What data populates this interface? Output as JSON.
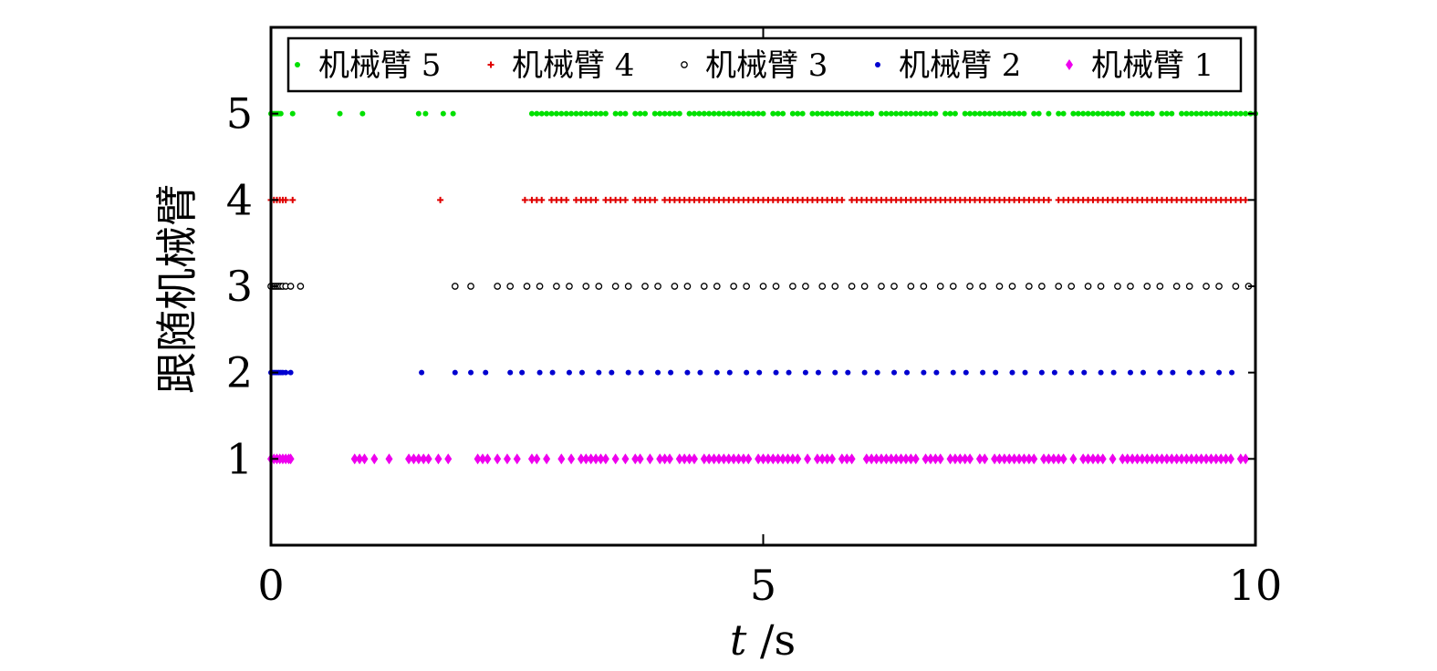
{
  "chart_data": {
    "type": "scatter",
    "xlabel_italic": "t",
    "xlabel_unit": " /s",
    "ylabel": "跟随机械臂",
    "xlim": [
      0,
      10
    ],
    "ylim": [
      0,
      6
    ],
    "x_ticks": [
      "0",
      "5",
      "10"
    ],
    "y_ticks": [
      "1",
      "2",
      "3",
      "4",
      "5"
    ],
    "grid": false,
    "legend_position": "top",
    "series": [
      {
        "name": "机械臂 5",
        "y": 5,
        "marker": "dot",
        "color": "#00e000",
        "x": [
          0.0,
          0.02,
          0.04,
          0.06,
          0.08,
          0.1,
          0.22,
          0.7,
          0.93,
          1.5,
          1.57,
          1.75,
          1.85,
          2.65,
          2.7,
          2.75,
          2.8,
          2.85,
          2.9,
          2.95,
          3.0,
          3.05,
          3.1,
          3.15,
          3.2,
          3.25,
          3.3,
          3.35,
          3.4,
          3.5,
          3.55,
          3.6,
          3.7,
          3.75,
          3.8,
          3.9,
          3.95,
          4.0,
          4.05,
          4.1,
          4.15,
          4.25,
          4.3,
          4.35,
          4.4,
          4.45,
          4.5,
          4.55,
          4.6,
          4.65,
          4.7,
          4.75,
          4.8,
          4.85,
          4.9,
          4.95,
          5.0,
          5.1,
          5.15,
          5.2,
          5.3,
          5.35,
          5.4,
          5.5,
          5.55,
          5.6,
          5.65,
          5.7,
          5.75,
          5.8,
          5.85,
          5.9,
          5.95,
          6.0,
          6.05,
          6.1,
          6.2,
          6.25,
          6.3,
          6.35,
          6.4,
          6.45,
          6.5,
          6.55,
          6.6,
          6.65,
          6.7,
          6.75,
          6.85,
          6.9,
          6.95,
          7.05,
          7.1,
          7.15,
          7.2,
          7.25,
          7.3,
          7.35,
          7.4,
          7.45,
          7.5,
          7.55,
          7.6,
          7.65,
          7.75,
          7.8,
          7.9,
          8.0,
          8.05,
          8.15,
          8.2,
          8.25,
          8.3,
          8.35,
          8.4,
          8.45,
          8.5,
          8.55,
          8.6,
          8.65,
          8.75,
          8.8,
          8.85,
          8.9,
          8.95,
          9.05,
          9.1,
          9.15,
          9.25,
          9.3,
          9.35,
          9.4,
          9.45,
          9.5,
          9.55,
          9.6,
          9.65,
          9.7,
          9.75,
          9.8,
          9.85,
          9.9,
          9.95,
          10.0
        ]
      },
      {
        "name": "机械臂 4",
        "y": 4,
        "marker": "plus",
        "color": "#e00000",
        "x": [
          0.0,
          0.03,
          0.06,
          0.09,
          0.12,
          0.15,
          0.22,
          1.72,
          2.58,
          2.65,
          2.7,
          2.75,
          2.85,
          2.9,
          2.95,
          3.0,
          3.1,
          3.15,
          3.2,
          3.25,
          3.3,
          3.4,
          3.45,
          3.5,
          3.55,
          3.6,
          3.7,
          3.75,
          3.8,
          3.85,
          3.9,
          4.0,
          4.05,
          4.1,
          4.15,
          4.2,
          4.25,
          4.3,
          4.35,
          4.4,
          4.45,
          4.5,
          4.55,
          4.6,
          4.65,
          4.7,
          4.75,
          4.8,
          4.85,
          4.9,
          4.95,
          5.0,
          5.05,
          5.1,
          5.15,
          5.2,
          5.25,
          5.3,
          5.35,
          5.4,
          5.45,
          5.5,
          5.55,
          5.6,
          5.65,
          5.7,
          5.75,
          5.8,
          5.9,
          5.95,
          6.0,
          6.05,
          6.1,
          6.15,
          6.2,
          6.25,
          6.3,
          6.35,
          6.4,
          6.45,
          6.5,
          6.55,
          6.6,
          6.65,
          6.7,
          6.75,
          6.8,
          6.85,
          6.9,
          6.95,
          7.0,
          7.05,
          7.1,
          7.15,
          7.2,
          7.25,
          7.3,
          7.35,
          7.4,
          7.45,
          7.5,
          7.55,
          7.6,
          7.65,
          7.7,
          7.75,
          7.8,
          7.85,
          7.9,
          8.0,
          8.05,
          8.1,
          8.15,
          8.2,
          8.25,
          8.3,
          8.35,
          8.4,
          8.45,
          8.5,
          8.55,
          8.6,
          8.65,
          8.7,
          8.75,
          8.8,
          8.85,
          8.9,
          8.95,
          9.0,
          9.05,
          9.1,
          9.15,
          9.2,
          9.25,
          9.3,
          9.35,
          9.4,
          9.45,
          9.5,
          9.55,
          9.6,
          9.65,
          9.7,
          9.75,
          9.8,
          9.85,
          9.9
        ]
      },
      {
        "name": "机械臂 3",
        "y": 3,
        "marker": "circle",
        "color": "#000000",
        "x": [
          0.0,
          0.02,
          0.04,
          0.06,
          0.08,
          0.1,
          0.12,
          0.15,
          0.2,
          0.3,
          1.87,
          2.03,
          2.3,
          2.43,
          2.6,
          2.73,
          2.9,
          3.03,
          3.2,
          3.33,
          3.5,
          3.63,
          3.8,
          3.93,
          4.1,
          4.23,
          4.4,
          4.53,
          4.7,
          4.83,
          5.0,
          5.13,
          5.3,
          5.43,
          5.6,
          5.73,
          5.9,
          6.03,
          6.2,
          6.33,
          6.5,
          6.63,
          6.8,
          6.93,
          7.1,
          7.23,
          7.4,
          7.53,
          7.7,
          7.83,
          8.0,
          8.13,
          8.3,
          8.43,
          8.6,
          8.73,
          8.9,
          9.03,
          9.2,
          9.33,
          9.5,
          9.63,
          9.8,
          9.93
        ]
      },
      {
        "name": "机械臂 2",
        "y": 2,
        "marker": "dot",
        "color": "#0000d0",
        "x": [
          0.0,
          0.02,
          0.04,
          0.06,
          0.08,
          0.1,
          0.12,
          0.15,
          0.2,
          1.53,
          1.87,
          2.03,
          2.18,
          2.43,
          2.55,
          2.73,
          2.86,
          3.03,
          3.16,
          3.33,
          3.46,
          3.63,
          3.76,
          3.93,
          4.06,
          4.23,
          4.36,
          4.53,
          4.66,
          4.83,
          4.96,
          5.13,
          5.26,
          5.43,
          5.56,
          5.73,
          5.86,
          6.03,
          6.16,
          6.33,
          6.46,
          6.63,
          6.76,
          6.93,
          7.06,
          7.23,
          7.36,
          7.53,
          7.66,
          7.83,
          7.96,
          8.13,
          8.26,
          8.43,
          8.56,
          8.73,
          8.86,
          9.03,
          9.16,
          9.33,
          9.46,
          9.63,
          9.76
        ]
      },
      {
        "name": "机械臂 1",
        "y": 1,
        "marker": "diamond",
        "color": "#ee00ee",
        "x": [
          0.0,
          0.03,
          0.06,
          0.09,
          0.12,
          0.15,
          0.18,
          0.2,
          0.85,
          0.9,
          0.95,
          1.05,
          1.2,
          1.4,
          1.45,
          1.5,
          1.55,
          1.6,
          1.7,
          1.8,
          2.1,
          2.15,
          2.2,
          2.3,
          2.4,
          2.5,
          2.65,
          2.7,
          2.8,
          2.95,
          3.05,
          3.15,
          3.2,
          3.25,
          3.3,
          3.35,
          3.4,
          3.5,
          3.6,
          3.7,
          3.75,
          3.85,
          3.95,
          4.0,
          4.05,
          4.15,
          4.2,
          4.25,
          4.3,
          4.4,
          4.45,
          4.5,
          4.55,
          4.6,
          4.65,
          4.7,
          4.75,
          4.8,
          4.85,
          4.95,
          5.0,
          5.05,
          5.1,
          5.15,
          5.2,
          5.25,
          5.3,
          5.35,
          5.45,
          5.55,
          5.6,
          5.65,
          5.7,
          5.8,
          5.85,
          5.9,
          6.05,
          6.1,
          6.15,
          6.2,
          6.25,
          6.3,
          6.35,
          6.4,
          6.45,
          6.5,
          6.55,
          6.65,
          6.7,
          6.75,
          6.8,
          6.9,
          6.95,
          7.0,
          7.05,
          7.1,
          7.2,
          7.25,
          7.35,
          7.4,
          7.45,
          7.5,
          7.55,
          7.6,
          7.65,
          7.7,
          7.75,
          7.85,
          7.9,
          7.95,
          8.0,
          8.05,
          8.15,
          8.25,
          8.3,
          8.35,
          8.4,
          8.45,
          8.55,
          8.65,
          8.7,
          8.75,
          8.8,
          8.85,
          8.9,
          8.95,
          9.0,
          9.05,
          9.1,
          9.15,
          9.2,
          9.25,
          9.3,
          9.35,
          9.4,
          9.45,
          9.5,
          9.55,
          9.6,
          9.65,
          9.7,
          9.75,
          9.85,
          9.9
        ]
      }
    ]
  }
}
